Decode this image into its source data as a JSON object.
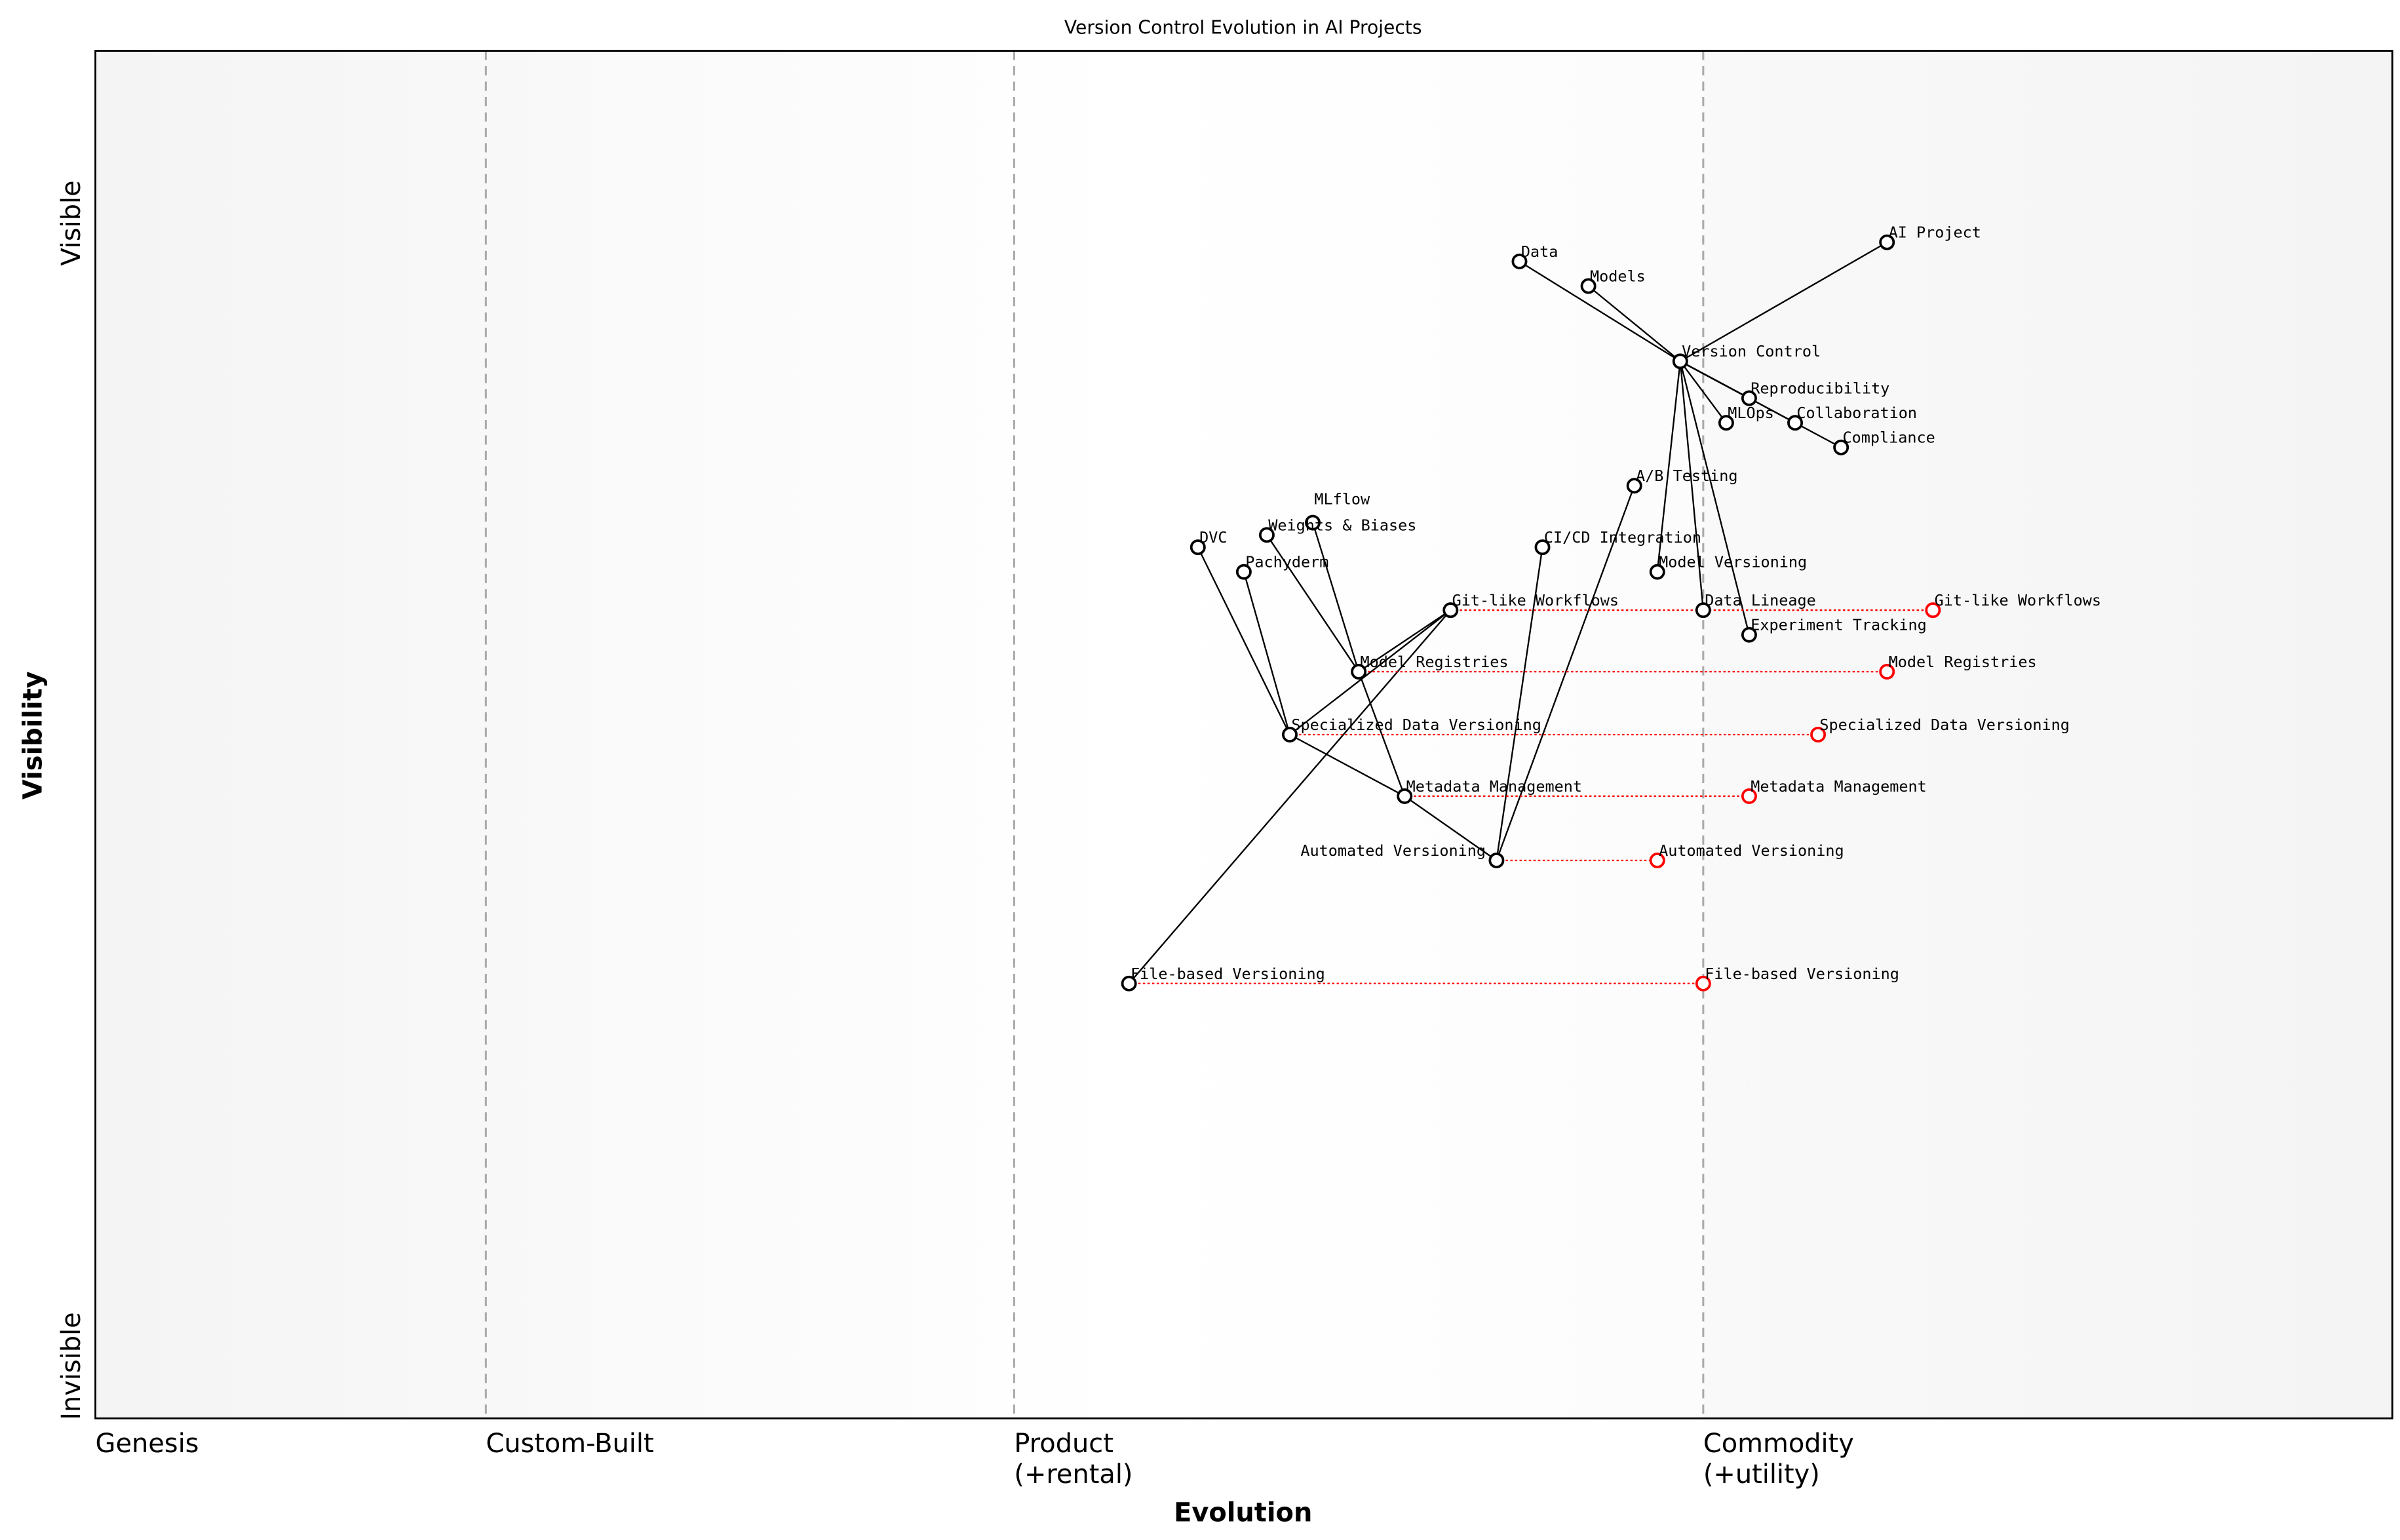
{
  "title": "Version Control Evolution in AI Projects",
  "axes": {
    "xlabel": "Evolution",
    "ylabel": "Visibility",
    "y_top": "Visible",
    "y_bottom": "Invisible",
    "stages": [
      {
        "label": "Genesis",
        "at": 0.0
      },
      {
        "label": "Custom-Built",
        "at": 0.17
      },
      {
        "label": "Product\n(+rental)",
        "at": 0.4
      },
      {
        "label": "Commodity\n(+utility)",
        "at": 0.7
      }
    ]
  },
  "colors": {
    "node": "#000000",
    "evolved": "#ff0000",
    "link": "#000000",
    "stage_line": "#aaaaaa"
  },
  "components": [
    {
      "name": "AI Project",
      "evolution": 0.78,
      "visibility": 0.86
    },
    {
      "name": "Data",
      "evolution": 0.62,
      "visibility": 0.846
    },
    {
      "name": "Models",
      "evolution": 0.65,
      "visibility": 0.828
    },
    {
      "name": "Version Control",
      "evolution": 0.69,
      "visibility": 0.773
    },
    {
      "name": "Reproducibility",
      "evolution": 0.72,
      "visibility": 0.746
    },
    {
      "name": "MLOps",
      "evolution": 0.71,
      "visibility": 0.728
    },
    {
      "name": "Collaboration",
      "evolution": 0.74,
      "visibility": 0.728
    },
    {
      "name": "Compliance",
      "evolution": 0.76,
      "visibility": 0.71
    },
    {
      "name": "A/B Testing",
      "evolution": 0.67,
      "visibility": 0.682
    },
    {
      "name": "CI/CD Integration",
      "evolution": 0.63,
      "visibility": 0.637
    },
    {
      "name": "Model Versioning",
      "evolution": 0.68,
      "visibility": 0.619
    },
    {
      "name": "Data Lineage",
      "evolution": 0.7,
      "visibility": 0.591
    },
    {
      "name": "Experiment Tracking",
      "evolution": 0.72,
      "visibility": 0.573
    },
    {
      "name": "MLflow",
      "evolution": 0.53,
      "visibility": 0.655
    },
    {
      "name": "Weights & Biases",
      "evolution": 0.51,
      "visibility": 0.646
    },
    {
      "name": "DVC",
      "evolution": 0.48,
      "visibility": 0.637
    },
    {
      "name": "Pachyderm",
      "evolution": 0.5,
      "visibility": 0.619
    },
    {
      "name": "Git-like Workflows",
      "evolution": 0.59,
      "visibility": 0.591
    },
    {
      "name": "Model Registries",
      "evolution": 0.55,
      "visibility": 0.546
    },
    {
      "name": "Specialized Data Versioning",
      "evolution": 0.52,
      "visibility": 0.5
    },
    {
      "name": "Metadata Management",
      "evolution": 0.57,
      "visibility": 0.455
    },
    {
      "name": "Automated Versioning",
      "evolution": 0.61,
      "visibility": 0.408
    },
    {
      "name": "File-based Versioning",
      "evolution": 0.45,
      "visibility": 0.318
    }
  ],
  "evolved": [
    {
      "name": "Git-like Workflows",
      "evolution": 0.8
    },
    {
      "name": "Model Registries",
      "evolution": 0.78
    },
    {
      "name": "Specialized Data Versioning",
      "evolution": 0.75
    },
    {
      "name": "Metadata Management",
      "evolution": 0.72
    },
    {
      "name": "Automated Versioning",
      "evolution": 0.68
    },
    {
      "name": "File-based Versioning",
      "evolution": 0.7
    }
  ],
  "links": [
    [
      "AI Project",
      "Version Control"
    ],
    [
      "Data",
      "Version Control"
    ],
    [
      "Models",
      "Version Control"
    ],
    [
      "Version Control",
      "Reproducibility"
    ],
    [
      "Version Control",
      "Collaboration"
    ],
    [
      "Version Control",
      "Compliance"
    ],
    [
      "Version Control",
      "MLOps"
    ],
    [
      "Version Control",
      "Model Versioning"
    ],
    [
      "Version Control",
      "Data Lineage"
    ],
    [
      "Version Control",
      "Experiment Tracking"
    ],
    [
      "Git-like Workflows",
      "Model Registries"
    ],
    [
      "Git-like Workflows",
      "Specialized Data Versioning"
    ],
    [
      "Git-like Workflows",
      "File-based Versioning"
    ],
    [
      "Model Registries",
      "Weights & Biases"
    ],
    [
      "Model Registries",
      "MLflow"
    ],
    [
      "Model Registries",
      "Metadata Management"
    ],
    [
      "Specialized Data Versioning",
      "DVC"
    ],
    [
      "Specialized Data Versioning",
      "Pachyderm"
    ],
    [
      "Specialized Data Versioning",
      "Metadata Management"
    ],
    [
      "Metadata Management",
      "Automated Versioning"
    ],
    [
      "Automated Versioning",
      "CI/CD Integration"
    ],
    [
      "Automated Versioning",
      "A/B Testing"
    ]
  ]
}
